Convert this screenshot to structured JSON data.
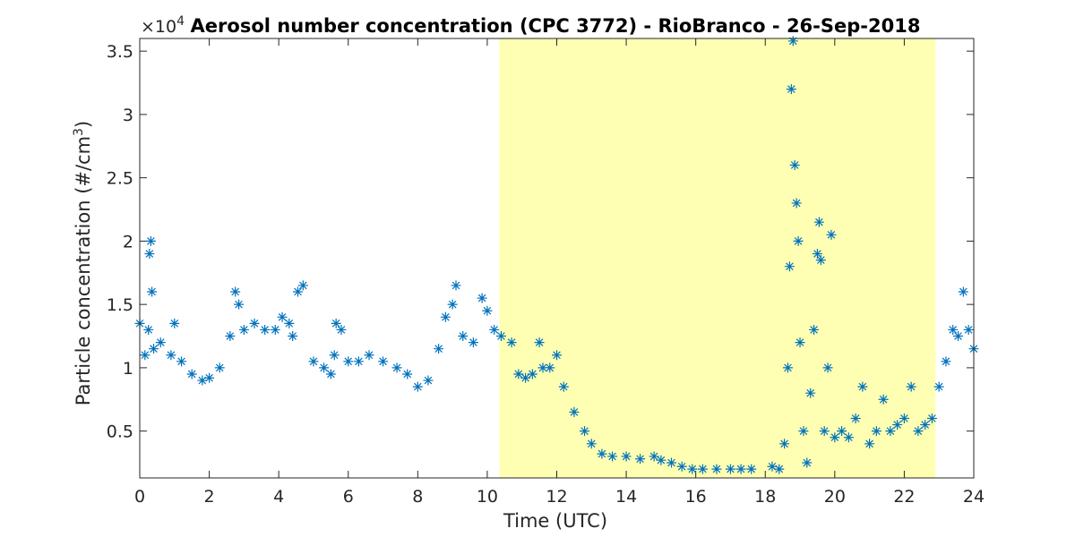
{
  "chart_data": {
    "type": "scatter",
    "title": "Aerosol number concentration (CPC 3772) - RioBranco - 26-Sep-2018",
    "xlabel": "Time (UTC)",
    "ylabel_main": "Particle concentration (#/cm",
    "ylabel_sup": "3",
    "ylabel_close": ")",
    "y_exponent_base": "×10",
    "y_exponent_power": "4",
    "xlim": [
      0,
      24
    ],
    "ylim": [
      0.13,
      3.6
    ],
    "x_ticks": [
      0,
      2,
      4,
      6,
      8,
      10,
      12,
      14,
      16,
      18,
      20,
      22,
      24
    ],
    "x_tick_labels": [
      "0",
      "2",
      "4",
      "6",
      "8",
      "10",
      "12",
      "14",
      "16",
      "18",
      "20",
      "22",
      "24"
    ],
    "y_ticks": [
      0.5,
      1,
      1.5,
      2,
      2.5,
      3,
      3.5
    ],
    "y_tick_labels": [
      "0.5",
      "1",
      "1.5",
      "2",
      "2.5",
      "3",
      "3.5"
    ],
    "shaded_region": {
      "x_start": 10.35,
      "x_end": 22.9,
      "color": "#ffffb3"
    },
    "marker": "asterisk",
    "marker_color": "#0072bd",
    "series": [
      {
        "x": [
          0.0,
          0.15,
          0.25,
          0.28,
          0.32,
          0.35,
          0.4,
          0.6,
          0.9,
          1.0,
          1.2,
          1.5,
          1.8,
          2.0,
          2.3,
          2.6,
          2.75,
          2.85,
          3.0,
          3.3,
          3.6,
          3.9,
          4.1,
          4.3,
          4.4,
          4.55,
          4.7,
          5.0,
          5.3,
          5.5,
          5.6,
          5.65,
          5.8,
          6.0,
          6.3,
          6.6,
          7.0,
          7.4,
          7.7,
          8.0,
          8.3,
          8.6,
          8.8,
          9.0,
          9.1,
          9.3,
          9.6,
          9.85,
          10.0,
          10.2,
          10.4,
          10.7,
          10.9,
          11.1,
          11.3,
          11.5,
          11.6,
          11.8,
          12.0,
          12.2,
          12.5,
          12.8,
          13.0,
          13.3,
          13.6,
          14.0,
          14.4,
          14.8,
          15.0,
          15.3,
          15.6,
          15.9,
          16.2,
          16.6,
          17.0,
          17.3,
          17.6,
          18.2,
          18.4,
          18.55,
          18.65,
          18.7,
          18.75,
          18.8,
          18.85,
          18.9,
          18.95,
          19.0,
          19.1,
          19.2,
          19.3,
          19.4,
          19.5,
          19.55,
          19.6,
          19.7,
          19.8,
          19.9,
          20.0,
          20.2,
          20.4,
          20.6,
          20.8,
          21.0,
          21.2,
          21.4,
          21.6,
          21.8,
          22.0,
          22.2,
          22.4,
          22.6,
          22.8,
          23.0,
          23.2,
          23.4,
          23.55,
          23.7,
          23.85,
          24.0
        ],
        "y": [
          1.35,
          1.1,
          1.3,
          1.9,
          2.0,
          1.6,
          1.15,
          1.2,
          1.1,
          1.35,
          1.05,
          0.95,
          0.9,
          0.92,
          1.0,
          1.25,
          1.6,
          1.5,
          1.3,
          1.35,
          1.3,
          1.3,
          1.4,
          1.35,
          1.25,
          1.6,
          1.65,
          1.05,
          1.0,
          0.95,
          1.1,
          1.35,
          1.3,
          1.05,
          1.05,
          1.1,
          1.05,
          1.0,
          0.95,
          0.85,
          0.9,
          1.15,
          1.4,
          1.5,
          1.65,
          1.25,
          1.2,
          1.55,
          1.45,
          1.3,
          1.25,
          1.2,
          0.95,
          0.92,
          0.95,
          1.2,
          1.0,
          1.0,
          1.1,
          0.85,
          0.65,
          0.5,
          0.4,
          0.32,
          0.3,
          0.3,
          0.28,
          0.3,
          0.27,
          0.25,
          0.22,
          0.2,
          0.2,
          0.2,
          0.2,
          0.2,
          0.2,
          0.22,
          0.2,
          0.4,
          1.0,
          1.8,
          3.2,
          3.58,
          2.6,
          2.3,
          2.0,
          1.2,
          0.5,
          0.25,
          0.8,
          1.3,
          1.9,
          2.15,
          1.85,
          0.5,
          1.0,
          2.05,
          0.45,
          0.5,
          0.45,
          0.6,
          0.85,
          0.4,
          0.5,
          0.75,
          0.5,
          0.55,
          0.6,
          0.85,
          0.5,
          0.55,
          0.6,
          0.85,
          1.05,
          1.3,
          1.25,
          1.6,
          1.3,
          1.15
        ]
      }
    ]
  }
}
